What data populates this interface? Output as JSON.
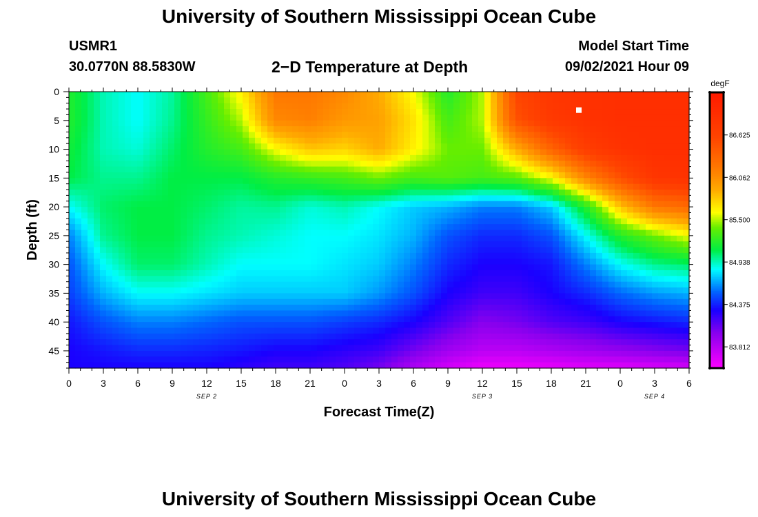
{
  "header": {
    "title": "University of Southern Mississippi Ocean Cube",
    "station_id": "USMR1",
    "coordinates": "30.0770N  88.5830W",
    "subtitle": "2−D Temperature at Depth",
    "model_start_label": "Model Start Time",
    "model_start_value": "09/02/2021 Hour 09"
  },
  "footer": {
    "title": "University of Southern Mississippi Ocean Cube"
  },
  "chart_data": {
    "type": "heatmap",
    "title": "2−D Temperature at Depth",
    "xlabel": "Forecast Time(Z)",
    "ylabel": "Depth (ft)",
    "x_hours_range": [
      0,
      54
    ],
    "x_tick_hours": [
      0,
      3,
      6,
      9,
      12,
      15,
      18,
      21,
      24,
      27,
      30,
      33,
      36,
      39,
      42,
      45,
      48,
      51,
      54
    ],
    "x_tick_labels": [
      "0",
      "3",
      "6",
      "9",
      "12",
      "15",
      "18",
      "21",
      "0",
      "3",
      "6",
      "9",
      "12",
      "15",
      "18",
      "21",
      "0",
      "3",
      "6"
    ],
    "date_labels": [
      {
        "text": "SEP 2",
        "hour": 12
      },
      {
        "text": "SEP 3",
        "hour": 36
      },
      {
        "text": "SEP 4",
        "hour": 51
      }
    ],
    "y_range": [
      0,
      48
    ],
    "y_ticks": [
      0,
      5,
      10,
      15,
      20,
      25,
      30,
      35,
      40,
      45
    ],
    "units": "degF",
    "colorbar_ticks": [
      86.625,
      86.062,
      85.5,
      84.938,
      84.375,
      83.812
    ],
    "colorbar_labels": [
      "86.625",
      "86.062",
      "85.500",
      "84.938",
      "84.375",
      "83.812"
    ],
    "colorbar_range": [
      83.53,
      87.19
    ],
    "colorbar_stops": [
      {
        "v": 83.53,
        "color": "#ff00ff"
      },
      {
        "v": 84.0,
        "color": "#8800ee"
      },
      {
        "v": 84.3,
        "color": "#1a00ff"
      },
      {
        "v": 84.55,
        "color": "#0066ff"
      },
      {
        "v": 84.85,
        "color": "#00ffff"
      },
      {
        "v": 85.1,
        "color": "#00ee44"
      },
      {
        "v": 85.4,
        "color": "#66ee00"
      },
      {
        "v": 85.6,
        "color": "#ffff00"
      },
      {
        "v": 85.9,
        "color": "#ffaa00"
      },
      {
        "v": 86.2,
        "color": "#ff7700"
      },
      {
        "v": 86.6,
        "color": "#ff4400"
      },
      {
        "v": 87.19,
        "color": "#ff1a00"
      }
    ],
    "depth_levels_ft": [
      0,
      5,
      10,
      15,
      20,
      25,
      30,
      35,
      40,
      45,
      48
    ],
    "time_columns_hours": [
      0,
      3,
      6,
      9,
      12,
      15,
      18,
      21,
      24,
      27,
      30,
      33,
      36,
      39,
      42,
      45,
      48,
      51,
      54
    ],
    "temperature_grid_degF": [
      [
        85.2,
        84.95,
        84.85,
        84.98,
        85.3,
        85.65,
        86.2,
        86.2,
        86.1,
        85.9,
        85.6,
        85.2,
        85.5,
        86.6,
        86.8,
        86.85,
        86.9,
        86.9,
        86.9
      ],
      [
        85.2,
        84.95,
        84.85,
        85.0,
        85.25,
        85.5,
        86.1,
        86.15,
        86.0,
        85.95,
        85.7,
        85.3,
        85.5,
        86.5,
        86.75,
        86.85,
        86.9,
        86.9,
        86.9
      ],
      [
        85.15,
        84.95,
        84.9,
        85.05,
        85.2,
        85.3,
        85.6,
        85.8,
        85.75,
        85.9,
        85.65,
        85.4,
        85.4,
        85.9,
        86.35,
        86.7,
        86.85,
        86.9,
        86.9
      ],
      [
        85.1,
        85.0,
        85.0,
        85.1,
        85.1,
        85.1,
        85.2,
        85.25,
        85.3,
        85.4,
        85.3,
        85.35,
        85.3,
        85.35,
        85.6,
        86.1,
        86.5,
        86.8,
        86.85
      ],
      [
        84.85,
        85.05,
        85.1,
        85.1,
        85.05,
        84.98,
        85.0,
        84.9,
        84.95,
        84.85,
        84.75,
        84.7,
        84.6,
        84.6,
        84.75,
        85.2,
        85.8,
        86.2,
        86.3
      ],
      [
        84.6,
        85.0,
        85.1,
        85.1,
        85.0,
        84.95,
        84.9,
        84.85,
        84.85,
        84.8,
        84.7,
        84.5,
        84.4,
        84.4,
        84.5,
        84.85,
        85.2,
        85.4,
        85.6
      ],
      [
        84.5,
        84.85,
        85.05,
        85.05,
        84.95,
        84.85,
        84.85,
        84.85,
        84.8,
        84.75,
        84.6,
        84.4,
        84.3,
        84.3,
        84.35,
        84.6,
        84.85,
        85.0,
        85.05
      ],
      [
        84.45,
        84.7,
        84.85,
        84.85,
        84.8,
        84.75,
        84.75,
        84.75,
        84.75,
        84.65,
        84.5,
        84.3,
        84.2,
        84.2,
        84.3,
        84.4,
        84.55,
        84.65,
        84.7
      ],
      [
        84.35,
        84.5,
        84.6,
        84.6,
        84.55,
        84.5,
        84.5,
        84.5,
        84.45,
        84.4,
        84.3,
        84.15,
        84.0,
        84.05,
        84.15,
        84.2,
        84.3,
        84.35,
        84.4
      ],
      [
        84.3,
        84.35,
        84.4,
        84.4,
        84.38,
        84.35,
        84.3,
        84.3,
        84.25,
        84.2,
        84.05,
        83.9,
        83.8,
        83.8,
        83.85,
        83.9,
        83.95,
        84.0,
        84.05
      ],
      [
        84.3,
        84.3,
        84.3,
        84.3,
        84.3,
        84.25,
        84.2,
        84.2,
        84.15,
        84.05,
        83.85,
        83.7,
        83.6,
        83.6,
        83.62,
        83.65,
        83.65,
        83.68,
        83.7
      ]
    ],
    "marker": {
      "hour": 44.4,
      "depth": 3.2
    }
  }
}
